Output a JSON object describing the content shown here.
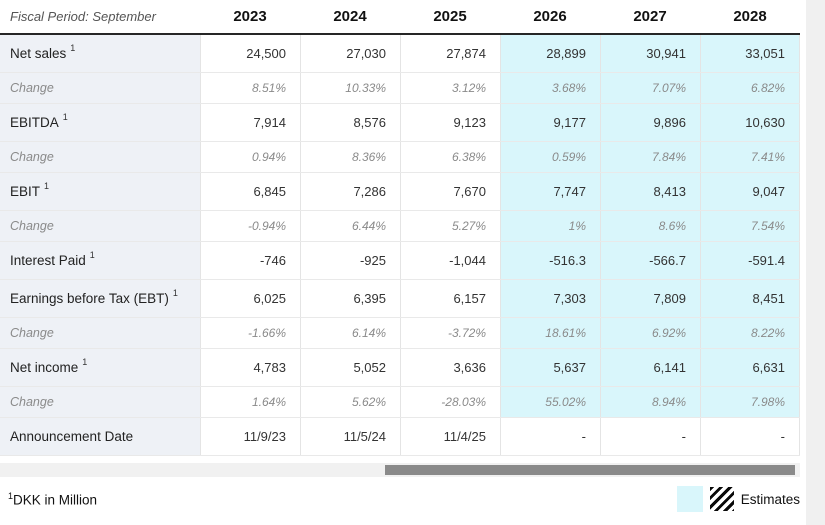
{
  "chart_data": {
    "type": "table",
    "title": "Fiscal Period: September",
    "columns": [
      "2023",
      "2024",
      "2025",
      "2026",
      "2027",
      "2028"
    ],
    "estimate_columns": [
      "2026",
      "2027",
      "2028"
    ],
    "rows": [
      {
        "label": "Net sales",
        "sup": "1",
        "type": "value",
        "estimate_highlight": true,
        "values": [
          "24,500",
          "27,030",
          "27,874",
          "28,899",
          "30,941",
          "33,051"
        ]
      },
      {
        "label": "Change",
        "sup": "",
        "type": "change",
        "estimate_highlight": true,
        "values": [
          "8.51%",
          "10.33%",
          "3.12%",
          "3.68%",
          "7.07%",
          "6.82%"
        ]
      },
      {
        "label": "EBITDA",
        "sup": "1",
        "type": "value",
        "estimate_highlight": true,
        "values": [
          "7,914",
          "8,576",
          "9,123",
          "9,177",
          "9,896",
          "10,630"
        ]
      },
      {
        "label": "Change",
        "sup": "",
        "type": "change",
        "estimate_highlight": true,
        "values": [
          "0.94%",
          "8.36%",
          "6.38%",
          "0.59%",
          "7.84%",
          "7.41%"
        ]
      },
      {
        "label": "EBIT",
        "sup": "1",
        "type": "value",
        "estimate_highlight": true,
        "values": [
          "6,845",
          "7,286",
          "7,670",
          "7,747",
          "8,413",
          "9,047"
        ]
      },
      {
        "label": "Change",
        "sup": "",
        "type": "change",
        "estimate_highlight": true,
        "values": [
          "-0.94%",
          "6.44%",
          "5.27%",
          "1%",
          "8.6%",
          "7.54%"
        ]
      },
      {
        "label": "Interest Paid",
        "sup": "1",
        "type": "value",
        "estimate_highlight": true,
        "values": [
          "-746",
          "-925",
          "-1,044",
          "-516.3",
          "-566.7",
          "-591.4"
        ]
      },
      {
        "label": "Earnings before Tax (EBT)",
        "sup": "1",
        "type": "value",
        "estimate_highlight": true,
        "values": [
          "6,025",
          "6,395",
          "6,157",
          "7,303",
          "7,809",
          "8,451"
        ]
      },
      {
        "label": "Change",
        "sup": "",
        "type": "change",
        "estimate_highlight": true,
        "values": [
          "-1.66%",
          "6.14%",
          "-3.72%",
          "18.61%",
          "6.92%",
          "8.22%"
        ]
      },
      {
        "label": "Net income",
        "sup": "1",
        "type": "value",
        "estimate_highlight": true,
        "values": [
          "4,783",
          "5,052",
          "3,636",
          "5,637",
          "6,141",
          "6,631"
        ]
      },
      {
        "label": "Change",
        "sup": "",
        "type": "change",
        "estimate_highlight": true,
        "values": [
          "1.64%",
          "5.62%",
          "-28.03%",
          "55.02%",
          "8.94%",
          "7.98%"
        ]
      },
      {
        "label": "Announcement Date",
        "sup": "",
        "type": "value",
        "estimate_highlight": false,
        "values": [
          "11/9/23",
          "11/5/24",
          "11/4/25",
          "-",
          "-",
          "-"
        ]
      }
    ],
    "footnote_sup": "1",
    "footnote": "DKK in Million",
    "legend_label": "Estimates"
  },
  "colors": {
    "estimate_bg": "#d9f6fb",
    "label_col_bg": "#eef1f6",
    "scroll_track": "#f1f1f1",
    "scroll_thumb": "#8a8a8a",
    "side_strip": "#f0f0f0"
  }
}
